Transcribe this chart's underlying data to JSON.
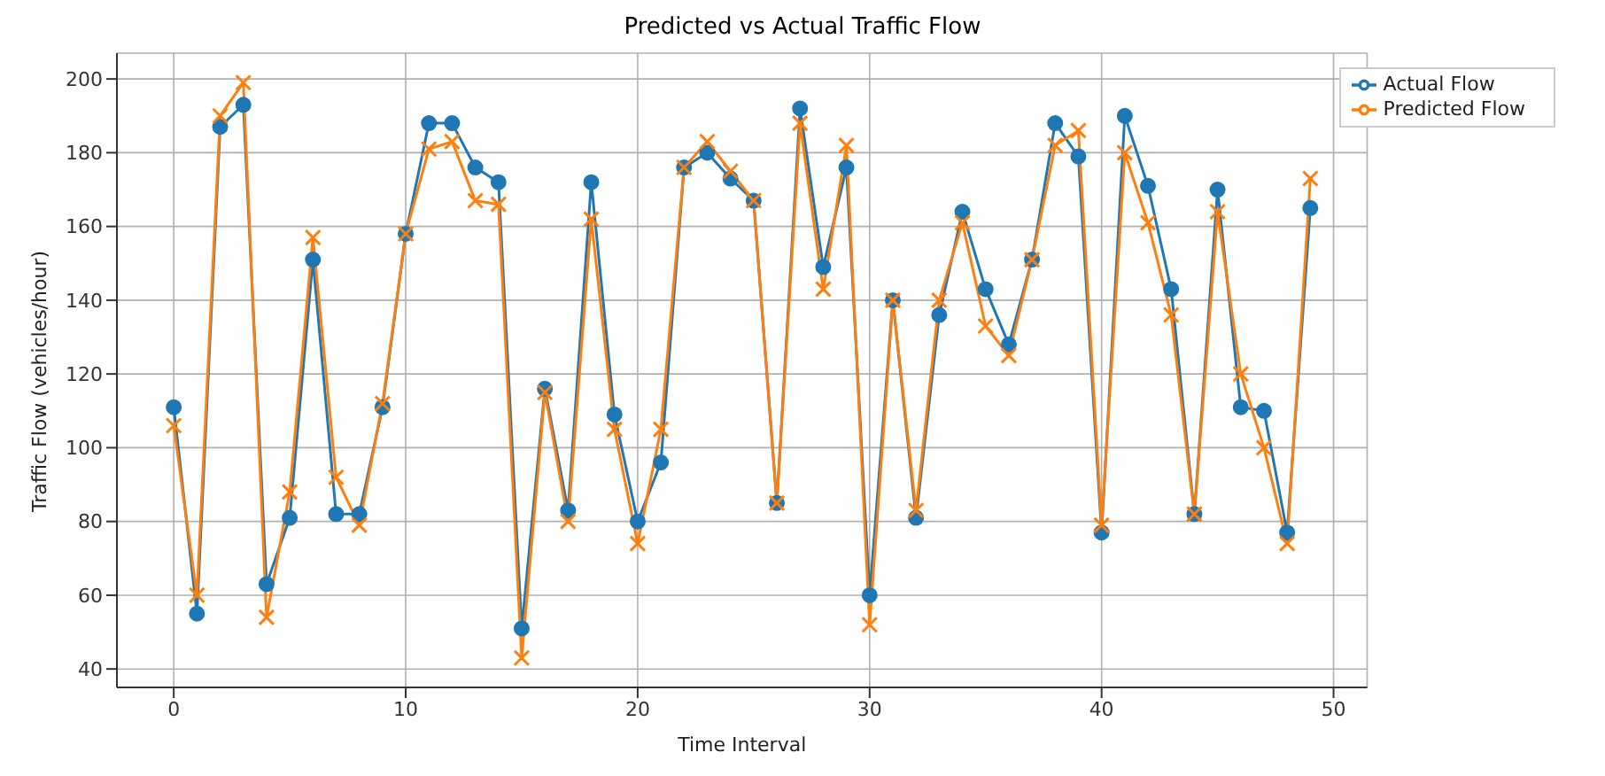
{
  "chart_data": {
    "type": "line",
    "title": "Predicted vs Actual Traffic Flow",
    "xlabel": "Time Interval",
    "ylabel": "Traffic Flow (vehicles/hour)",
    "x": [
      0,
      1,
      2,
      3,
      4,
      5,
      6,
      7,
      8,
      9,
      10,
      11,
      12,
      13,
      14,
      15,
      16,
      17,
      18,
      19,
      20,
      21,
      22,
      23,
      24,
      25,
      26,
      27,
      28,
      29,
      30,
      31,
      32,
      33,
      34,
      35,
      36,
      37,
      38,
      39,
      40,
      41,
      42,
      43,
      44,
      45,
      46,
      47,
      48,
      49
    ],
    "series": [
      {
        "name": "Actual Flow",
        "color": "#1f77b4",
        "marker": "circle",
        "values": [
          111,
          55,
          187,
          193,
          63,
          81,
          151,
          82,
          82,
          111,
          158,
          188,
          188,
          176,
          172,
          51,
          116,
          83,
          172,
          109,
          80,
          96,
          176,
          180,
          173,
          167,
          85,
          192,
          149,
          176,
          60,
          140,
          81,
          136,
          164,
          143,
          128,
          151,
          188,
          179,
          77,
          190,
          171,
          143,
          82,
          170,
          111,
          110,
          77,
          165
        ]
      },
      {
        "name": "Predicted Flow",
        "color": "#ff7f0e",
        "marker": "cross",
        "values": [
          106,
          60,
          190,
          199,
          54,
          88,
          157,
          92,
          79,
          112,
          158,
          181,
          183,
          167,
          166,
          43,
          115,
          80,
          162,
          105,
          74,
          105,
          176,
          183,
          175,
          167,
          85,
          188,
          143,
          182,
          52,
          140,
          83,
          140,
          161,
          133,
          125,
          151,
          182,
          186,
          79,
          180,
          161,
          136,
          82,
          164,
          120,
          100,
          74,
          173
        ]
      }
    ],
    "xlim": [
      -2.45,
      51.45
    ],
    "xticks": [
      0,
      10,
      20,
      30,
      40,
      50
    ],
    "ylim": [
      35,
      207
    ],
    "yticks": [
      40,
      60,
      80,
      100,
      120,
      140,
      160,
      180,
      200
    ],
    "grid": true,
    "legend": "top right",
    "line_style": "solid"
  }
}
